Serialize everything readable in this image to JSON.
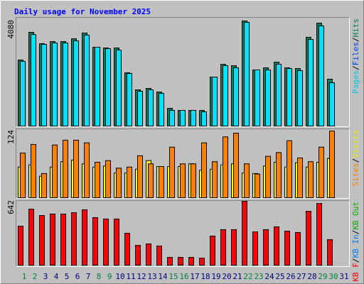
{
  "chart_data": [
    {
      "type": "bar",
      "title": "Daily usage for November 2025",
      "ylim": [
        0,
        4080
      ],
      "yticks": [
        4080
      ],
      "legend": [
        {
          "name": "Pages",
          "color": "#00c8e8"
        },
        {
          "name": "Files",
          "color": "#0040ff"
        },
        {
          "name": "Hits",
          "color": "#008060"
        }
      ],
      "series": [
        {
          "color": "#008060",
          "values": [
            2564,
            3639,
            3198,
            3280,
            3280,
            3391,
            3611,
            3060,
            3032,
            3032,
            2068,
            1406,
            1461,
            1323,
            689,
            607,
            607,
            607,
            1902,
            2398,
            2343,
            4080,
            2178,
            2260,
            2481,
            2260,
            2233,
            3446,
            3997,
            1819,
            null
          ]
        },
        {
          "color": "#00e0ff",
          "values": [
            2509,
            3556,
            3170,
            3225,
            3225,
            3308,
            3529,
            3060,
            3005,
            2950,
            2040,
            1351,
            1406,
            1268,
            607,
            607,
            607,
            551,
            1902,
            2343,
            2260,
            4025,
            2178,
            2178,
            2398,
            2233,
            2150,
            3363,
            3887,
            1682,
            null
          ]
        }
      ]
    },
    {
      "type": "bar",
      "ylim": [
        0,
        124
      ],
      "yticks": [
        124
      ],
      "legend": [
        {
          "name": "Sites",
          "color": "#ff8000"
        },
        {
          "name": "Visits",
          "color": "#e8e800"
        }
      ],
      "series": [
        {
          "color": "#ffff00",
          "values": [
            57,
            61,
            40,
            57,
            67,
            70,
            63,
            57,
            59,
            46,
            46,
            53,
            69,
            58,
            58,
            58,
            63,
            51,
            53,
            61,
            63,
            46,
            45,
            59,
            66,
            57,
            65,
            57,
            66,
            73,
            null
          ]
        },
        {
          "color": "#ff8000",
          "values": [
            83,
            99,
            45,
            98,
            107,
            107,
            102,
            66,
            69,
            55,
            57,
            78,
            63,
            58,
            94,
            63,
            63,
            102,
            67,
            113,
            120,
            63,
            44,
            77,
            84,
            106,
            74,
            67,
            94,
            124,
            null
          ]
        }
      ]
    },
    {
      "type": "bar",
      "ylim": [
        0,
        642
      ],
      "yticks": [
        642
      ],
      "legend": [
        {
          "name": "KB F",
          "color": "#ff0000"
        },
        {
          "name": "KB In",
          "color": "#0080ff"
        },
        {
          "name": "KB Out",
          "color": "#00b000"
        }
      ],
      "series": [
        {
          "color": "#ff0000",
          "values": [
            392,
            563,
            499,
            514,
            514,
            528,
            556,
            478,
            464,
            464,
            321,
            200,
            214,
            193,
            78,
            78,
            78,
            71,
            292,
            357,
            357,
            642,
            335,
            357,
            385,
            342,
            328,
            542,
            620,
            257,
            null
          ]
        }
      ],
      "categories": [
        "1",
        "2",
        "3",
        "4",
        "5",
        "6",
        "7",
        "8",
        "9",
        "10",
        "11",
        "12",
        "13",
        "14",
        "15",
        "16",
        "17",
        "18",
        "19",
        "20",
        "21",
        "22",
        "23",
        "24",
        "25",
        "26",
        "27",
        "28",
        "29",
        "30",
        "31"
      ],
      "category_colors": [
        "#008040",
        "#008040",
        "#000080",
        "#000080",
        "#000080",
        "#000080",
        "#000080",
        "#008040",
        "#008040",
        "#000080",
        "#000080",
        "#000080",
        "#000080",
        "#000080",
        "#008040",
        "#008040",
        "#000080",
        "#000080",
        "#000080",
        "#000080",
        "#000080",
        "#008040",
        "#008040",
        "#000080",
        "#000080",
        "#000080",
        "#000080",
        "#000080",
        "#008040",
        "#008040",
        "#000080"
      ]
    }
  ]
}
